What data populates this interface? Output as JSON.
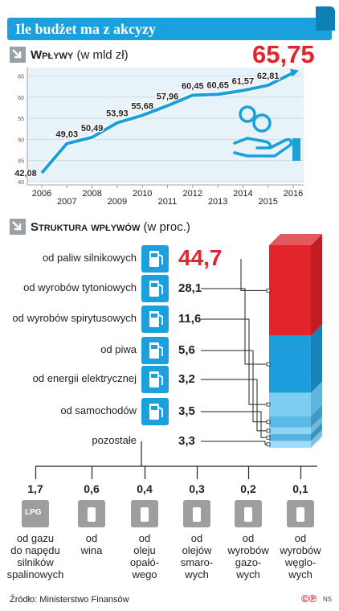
{
  "title": "Ile budżet ma z akcyzy",
  "revenue": {
    "heading": "Wpływy",
    "unit": "(w mld zł)",
    "latest_value": "65,75"
  },
  "structure": {
    "heading": "Struktura wpływów",
    "unit": "(w proc.)"
  },
  "source": "Źródło: Ministerstwo Finansów",
  "logo": {
    "mark": "©℗",
    "ns": "NS"
  },
  "colors": {
    "accent": "#1aa0dc",
    "highlight": "#e3242b",
    "grey": "#9e9e9e"
  },
  "chart_data": [
    {
      "type": "line",
      "x": [
        "2006",
        "2007",
        "2008",
        "2009",
        "2010",
        "2011",
        "2012",
        "2013",
        "2014",
        "2015",
        "2016"
      ],
      "series": [
        {
          "values": [
            42.08,
            49.03,
            50.49,
            53.93,
            55.68,
            57.96,
            60.45,
            60.65,
            61.57,
            62.81,
            65.75
          ]
        }
      ],
      "data_labels": [
        "42,08",
        "49,03",
        "50,49",
        "53,93",
        "55,68",
        "57,96",
        "60,45",
        "60,65",
        "61,57",
        "62,81",
        ""
      ],
      "yticks": [
        "40",
        "45",
        "50",
        "55",
        "60",
        "65"
      ],
      "ylim": [
        40,
        67
      ],
      "grid": true
    },
    {
      "type": "bar",
      "categories": [
        "od paliw silnikowych",
        "od wyrobów tytoniowych",
        "od wyrobów spirytusowych",
        "od piwa",
        "od energii elektrycznej",
        "od samochodów",
        "pozostałe"
      ],
      "values": [
        44.7,
        28.1,
        11.6,
        5.6,
        3.2,
        3.5,
        3.3
      ],
      "value_labels": [
        "44,7",
        "28,1",
        "11,6",
        "5,6",
        "3,2",
        "3,5",
        "3,3"
      ],
      "icons": [
        "fuel-pump-icon",
        "cigarette-icon",
        "bottle-glass-icon",
        "beer-mug-icon",
        "power-pylon-icon",
        "car-icon",
        ""
      ],
      "breakdown": {
        "of": "pozostałe",
        "values": [
          1.7,
          0.6,
          0.4,
          0.3,
          0.2,
          0.1
        ],
        "value_labels": [
          "1,7",
          "0,6",
          "0,4",
          "0,3",
          "0,2",
          "0,1"
        ],
        "labels": [
          [
            "od gazu",
            "do napędu",
            "silników",
            "spalinowych"
          ],
          [
            "od",
            "wina"
          ],
          [
            "od",
            "oleju",
            "opałó-",
            "wego"
          ],
          [
            "od",
            "olejów",
            "smaro-",
            "wych"
          ],
          [
            "od",
            "wyrobów",
            "gazo-",
            "wych"
          ],
          [
            "od",
            "wyrobów",
            "węglo-",
            "wych"
          ]
        ],
        "icons": [
          "lpg-tank-icon",
          "wine-bottle-icon",
          "heating-oil-icon",
          "lubricant-gears-icon",
          "gas-plant-icon",
          "coal-wagon-icon"
        ],
        "lpg_text": "LPG"
      }
    }
  ]
}
